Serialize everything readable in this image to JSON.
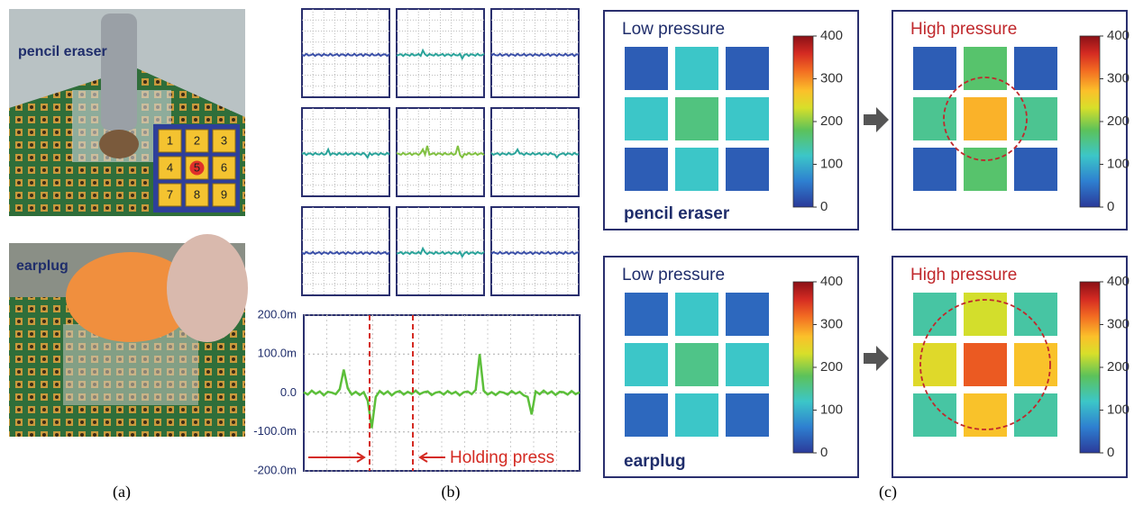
{
  "panel_labels": [
    "(a)",
    "(b)",
    "(c)"
  ],
  "photos": [
    {
      "label": "pencil eraser",
      "keypad": [
        "1",
        "2",
        "3",
        "4",
        "5",
        "6",
        "7",
        "8",
        "9"
      ]
    },
    {
      "label": "earplug"
    }
  ],
  "chart_data": {
    "type": "line",
    "annotation": "Holding press",
    "ylim": [
      -0.2,
      0.2
    ],
    "yticks": [
      {
        "value": 0.2,
        "label": "200.0m"
      },
      {
        "value": 0.1,
        "label": "100.0m"
      },
      {
        "value": 0,
        "label": "0.0"
      },
      {
        "value": -0.1,
        "label": "-100.0m"
      },
      {
        "value": -0.2,
        "label": "-200.0m"
      }
    ],
    "grid": true,
    "series": [
      {
        "color": "#5cbf3a",
        "values": [
          0.002,
          -0.004,
          0.006,
          -0.002,
          0.004,
          -0.006,
          0.003,
          0.001,
          -0.003,
          0.01,
          0.06,
          0.012,
          -0.004,
          0.003,
          -0.005,
          0.002,
          -0.02,
          -0.09,
          -0.01,
          0.005,
          -0.003,
          0.004,
          -0.006,
          0.002,
          0.005,
          -0.004,
          0.003,
          -0.002,
          0.006,
          -0.003,
          0.002,
          0.004,
          -0.005,
          0.001,
          0.003,
          -0.004,
          0.005,
          -0.002,
          0.003,
          -0.006,
          0.002,
          0.004,
          -0.003,
          0.008,
          0.1,
          0.006,
          -0.004,
          0.002,
          -0.005,
          0.003,
          0.001,
          -0.004,
          0.005,
          -0.002,
          0.003,
          -0.006,
          -0.01,
          -0.055,
          0.004,
          -0.003,
          0.006,
          -0.002,
          0.004,
          -0.005,
          0.003,
          0.002,
          -0.004,
          0.005,
          -0.003,
          0.002
        ]
      }
    ]
  },
  "heatmaps": [
    {
      "title": "Low pressure",
      "label": "pencil eraser",
      "clim": [
        0,
        400
      ],
      "colorbar_ticks": [
        0,
        100,
        200,
        300,
        400
      ],
      "cells": [
        [
          30,
          120,
          30
        ],
        [
          120,
          160,
          120
        ],
        [
          30,
          120,
          30
        ]
      ]
    },
    {
      "title": "High pressure",
      "clim": [
        0,
        400
      ],
      "colorbar_ticks": [
        0,
        100,
        200,
        300,
        400
      ],
      "cells": [
        [
          30,
          170,
          30
        ],
        [
          150,
          280,
          150
        ],
        [
          30,
          170,
          30
        ]
      ]
    },
    {
      "title": "Low pressure",
      "label": "earplug",
      "clim": [
        0,
        400
      ],
      "colorbar_ticks": [
        0,
        100,
        200,
        300,
        400
      ],
      "cells": [
        [
          40,
          120,
          40
        ],
        [
          120,
          155,
          120
        ],
        [
          40,
          120,
          40
        ]
      ]
    },
    {
      "title": "High pressure",
      "clim": [
        0,
        400
      ],
      "colorbar_ticks": [
        0,
        100,
        200,
        300,
        400
      ],
      "cells": [
        [
          140,
          230,
          140
        ],
        [
          240,
          330,
          270
        ],
        [
          140,
          270,
          140
        ]
      ]
    }
  ]
}
